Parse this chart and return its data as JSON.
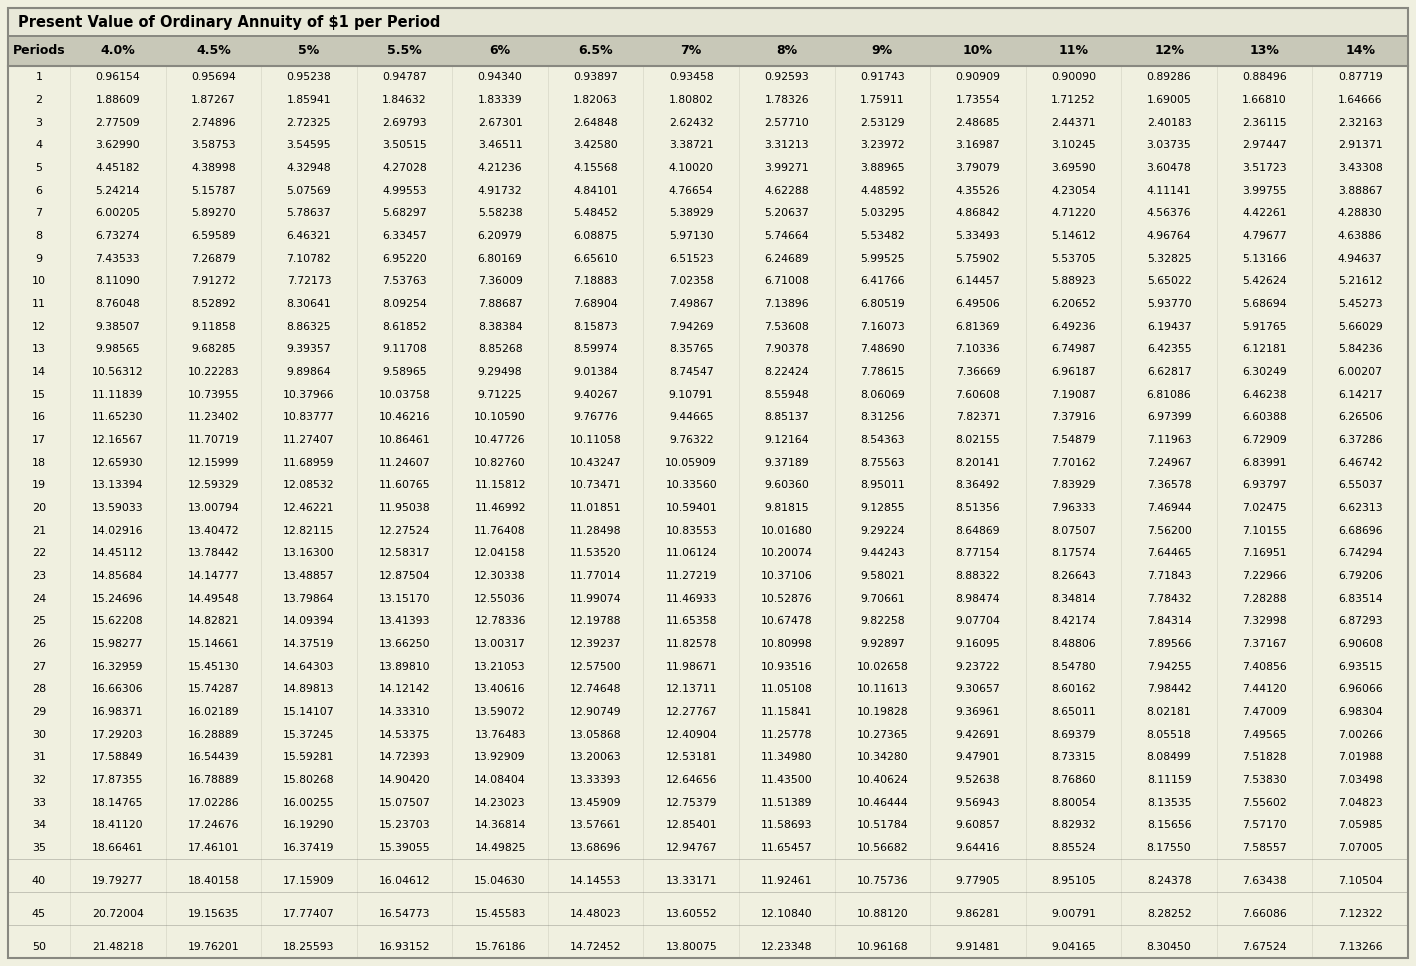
{
  "title": "Present Value of Ordinary Annuity of $1 per Period",
  "columns": [
    "Periods",
    "4.0%",
    "4.5%",
    "5%",
    "5.5%",
    "6%",
    "6.5%",
    "7%",
    "8%",
    "9%",
    "10%",
    "11%",
    "12%",
    "13%",
    "14%"
  ],
  "rows": [
    [
      1,
      0.96154,
      0.95694,
      0.95238,
      0.94787,
      0.9434,
      0.93897,
      0.93458,
      0.92593,
      0.91743,
      0.90909,
      0.9009,
      0.89286,
      0.88496,
      0.87719
    ],
    [
      2,
      1.88609,
      1.87267,
      1.85941,
      1.84632,
      1.83339,
      1.82063,
      1.80802,
      1.78326,
      1.75911,
      1.73554,
      1.71252,
      1.69005,
      1.6681,
      1.64666
    ],
    [
      3,
      2.77509,
      2.74896,
      2.72325,
      2.69793,
      2.67301,
      2.64848,
      2.62432,
      2.5771,
      2.53129,
      2.48685,
      2.44371,
      2.40183,
      2.36115,
      2.32163
    ],
    [
      4,
      3.6299,
      3.58753,
      3.54595,
      3.50515,
      3.46511,
      3.4258,
      3.38721,
      3.31213,
      3.23972,
      3.16987,
      3.10245,
      3.03735,
      2.97447,
      2.91371
    ],
    [
      5,
      4.45182,
      4.38998,
      4.32948,
      4.27028,
      4.21236,
      4.15568,
      4.1002,
      3.99271,
      3.88965,
      3.79079,
      3.6959,
      3.60478,
      3.51723,
      3.43308
    ],
    [
      6,
      5.24214,
      5.15787,
      5.07569,
      4.99553,
      4.91732,
      4.84101,
      4.76654,
      4.62288,
      4.48592,
      4.35526,
      4.23054,
      4.11141,
      3.99755,
      3.88867
    ],
    [
      7,
      6.00205,
      5.8927,
      5.78637,
      5.68297,
      5.58238,
      5.48452,
      5.38929,
      5.20637,
      5.03295,
      4.86842,
      4.7122,
      4.56376,
      4.42261,
      4.2883
    ],
    [
      8,
      6.73274,
      6.59589,
      6.46321,
      6.33457,
      6.20979,
      6.08875,
      5.9713,
      5.74664,
      5.53482,
      5.33493,
      5.14612,
      4.96764,
      4.79677,
      4.63886
    ],
    [
      9,
      7.43533,
      7.26879,
      7.10782,
      6.9522,
      6.80169,
      6.6561,
      6.51523,
      6.24689,
      5.99525,
      5.75902,
      5.53705,
      5.32825,
      5.13166,
      4.94637
    ],
    [
      10,
      8.1109,
      7.91272,
      7.72173,
      7.53763,
      7.36009,
      7.18883,
      7.02358,
      6.71008,
      6.41766,
      6.14457,
      5.88923,
      5.65022,
      5.42624,
      5.21612
    ],
    [
      11,
      8.76048,
      8.52892,
      8.30641,
      8.09254,
      7.88687,
      7.68904,
      7.49867,
      7.13896,
      6.80519,
      6.49506,
      6.20652,
      5.9377,
      5.68694,
      5.45273
    ],
    [
      12,
      9.38507,
      9.11858,
      8.86325,
      8.61852,
      8.38384,
      8.15873,
      7.94269,
      7.53608,
      7.16073,
      6.81369,
      6.49236,
      6.19437,
      5.91765,
      5.66029
    ],
    [
      13,
      9.98565,
      9.68285,
      9.39357,
      9.11708,
      8.85268,
      8.59974,
      8.35765,
      7.90378,
      7.4869,
      7.10336,
      6.74987,
      6.42355,
      6.12181,
      5.84236
    ],
    [
      14,
      10.56312,
      10.22283,
      9.89864,
      9.58965,
      9.29498,
      9.01384,
      8.74547,
      8.22424,
      7.78615,
      7.36669,
      6.96187,
      6.62817,
      6.30249,
      6.00207
    ],
    [
      15,
      11.11839,
      10.73955,
      10.37966,
      10.03758,
      9.71225,
      9.40267,
      9.10791,
      8.55948,
      8.06069,
      7.60608,
      7.19087,
      6.81086,
      6.46238,
      6.14217
    ],
    [
      16,
      11.6523,
      11.23402,
      10.83777,
      10.46216,
      10.1059,
      9.76776,
      9.44665,
      8.85137,
      8.31256,
      7.82371,
      7.37916,
      6.97399,
      6.60388,
      6.26506
    ],
    [
      17,
      12.16567,
      11.70719,
      11.27407,
      10.86461,
      10.47726,
      10.11058,
      9.76322,
      9.12164,
      8.54363,
      8.02155,
      7.54879,
      7.11963,
      6.72909,
      6.37286
    ],
    [
      18,
      12.6593,
      12.15999,
      11.68959,
      11.24607,
      10.8276,
      10.43247,
      10.05909,
      9.37189,
      8.75563,
      8.20141,
      7.70162,
      7.24967,
      6.83991,
      6.46742
    ],
    [
      19,
      13.13394,
      12.59329,
      12.08532,
      11.60765,
      11.15812,
      10.73471,
      10.3356,
      9.6036,
      8.95011,
      8.36492,
      7.83929,
      7.36578,
      6.93797,
      6.55037
    ],
    [
      20,
      13.59033,
      13.00794,
      12.46221,
      11.95038,
      11.46992,
      11.01851,
      10.59401,
      9.81815,
      9.12855,
      8.51356,
      7.96333,
      7.46944,
      7.02475,
      6.62313
    ],
    [
      21,
      14.02916,
      13.40472,
      12.82115,
      12.27524,
      11.76408,
      11.28498,
      10.83553,
      10.0168,
      9.29224,
      8.64869,
      8.07507,
      7.562,
      7.10155,
      6.68696
    ],
    [
      22,
      14.45112,
      13.78442,
      13.163,
      12.58317,
      12.04158,
      11.5352,
      11.06124,
      10.20074,
      9.44243,
      8.77154,
      8.17574,
      7.64465,
      7.16951,
      6.74294
    ],
    [
      23,
      14.85684,
      14.14777,
      13.48857,
      12.87504,
      12.30338,
      11.77014,
      11.27219,
      10.37106,
      9.58021,
      8.88322,
      8.26643,
      7.71843,
      7.22966,
      6.79206
    ],
    [
      24,
      15.24696,
      14.49548,
      13.79864,
      13.1517,
      12.55036,
      11.99074,
      11.46933,
      10.52876,
      9.70661,
      8.98474,
      8.34814,
      7.78432,
      7.28288,
      6.83514
    ],
    [
      25,
      15.62208,
      14.82821,
      14.09394,
      13.41393,
      12.78336,
      12.19788,
      11.65358,
      10.67478,
      9.82258,
      9.07704,
      8.42174,
      7.84314,
      7.32998,
      6.87293
    ],
    [
      26,
      15.98277,
      15.14661,
      14.37519,
      13.6625,
      13.00317,
      12.39237,
      11.82578,
      10.80998,
      9.92897,
      9.16095,
      8.48806,
      7.89566,
      7.37167,
      6.90608
    ],
    [
      27,
      16.32959,
      15.4513,
      14.64303,
      13.8981,
      13.21053,
      12.575,
      11.98671,
      10.93516,
      10.02658,
      9.23722,
      8.5478,
      7.94255,
      7.40856,
      6.93515
    ],
    [
      28,
      16.66306,
      15.74287,
      14.89813,
      14.12142,
      13.40616,
      12.74648,
      12.13711,
      11.05108,
      10.11613,
      9.30657,
      8.60162,
      7.98442,
      7.4412,
      6.96066
    ],
    [
      29,
      16.98371,
      16.02189,
      15.14107,
      14.3331,
      13.59072,
      12.90749,
      12.27767,
      11.15841,
      10.19828,
      9.36961,
      8.65011,
      8.02181,
      7.47009,
      6.98304
    ],
    [
      30,
      17.29203,
      16.28889,
      15.37245,
      14.53375,
      13.76483,
      13.05868,
      12.40904,
      11.25778,
      10.27365,
      9.42691,
      8.69379,
      8.05518,
      7.49565,
      7.00266
    ],
    [
      31,
      17.58849,
      16.54439,
      15.59281,
      14.72393,
      13.92909,
      13.20063,
      12.53181,
      11.3498,
      10.3428,
      9.47901,
      8.73315,
      8.08499,
      7.51828,
      7.01988
    ],
    [
      32,
      17.87355,
      16.78889,
      15.80268,
      14.9042,
      14.08404,
      13.33393,
      12.64656,
      11.435,
      10.40624,
      9.52638,
      8.7686,
      8.11159,
      7.5383,
      7.03498
    ],
    [
      33,
      18.14765,
      17.02286,
      16.00255,
      15.07507,
      14.23023,
      13.45909,
      12.75379,
      11.51389,
      10.46444,
      9.56943,
      8.80054,
      8.13535,
      7.55602,
      7.04823
    ],
    [
      34,
      18.4112,
      17.24676,
      16.1929,
      15.23703,
      14.36814,
      13.57661,
      12.85401,
      11.58693,
      10.51784,
      9.60857,
      8.82932,
      8.15656,
      7.5717,
      7.05985
    ],
    [
      35,
      18.66461,
      17.46101,
      16.37419,
      15.39055,
      14.49825,
      13.68696,
      12.94767,
      11.65457,
      10.56682,
      9.64416,
      8.85524,
      8.1755,
      7.58557,
      7.07005
    ],
    [
      40,
      19.79277,
      18.40158,
      17.15909,
      16.04612,
      15.0463,
      14.14553,
      13.33171,
      11.92461,
      10.75736,
      9.77905,
      8.95105,
      8.24378,
      7.63438,
      7.10504
    ],
    [
      45,
      20.72004,
      19.15635,
      17.77407,
      16.54773,
      15.45583,
      14.48023,
      13.60552,
      12.1084,
      10.8812,
      9.86281,
      9.00791,
      8.28252,
      7.66086,
      7.12322
    ],
    [
      50,
      21.48218,
      19.76201,
      18.25593,
      16.93152,
      15.76186,
      14.72452,
      13.80075,
      12.23348,
      10.96168,
      9.91481,
      9.04165,
      8.3045,
      7.67524,
      7.13266
    ]
  ],
  "bg_color": "#f0f0e0",
  "header_bg": "#c8c8b8",
  "title_bg": "#e8e8d8",
  "border_color": "#888880",
  "text_color": "#000000",
  "fig_w": 14.16,
  "fig_h": 9.66,
  "dpi": 100
}
